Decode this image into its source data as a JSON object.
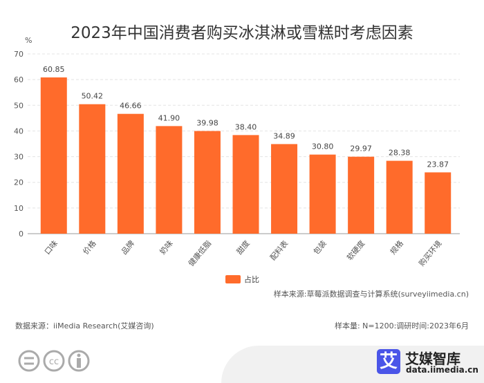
{
  "title": "2023年中国消费者购买冰淇淋或雪糕时考虑因素",
  "chart_data": {
    "type": "bar",
    "title": "2023年中国消费者购买冰淇淋或雪糕时考虑因素",
    "ylabel": "%",
    "ylim": [
      0,
      70
    ],
    "yticks": [
      0,
      10,
      20,
      30,
      40,
      50,
      60,
      70
    ],
    "grid": true,
    "legend_position": "bottom",
    "categories": [
      "口味",
      "价格",
      "品牌",
      "奶味",
      "健康低脂",
      "甜度",
      "配料表",
      "包装",
      "软硬度",
      "规格",
      "购买环境"
    ],
    "series": [
      {
        "name": "占比",
        "color": "#ff6b2b",
        "values": [
          60.85,
          50.42,
          46.66,
          41.9,
          39.98,
          38.4,
          34.89,
          30.8,
          29.97,
          28.38,
          23.87
        ]
      }
    ]
  },
  "footer": {
    "source": "数据来源：iiMedia Research(艾媒咨询)",
    "sample_source": "样本来源:草莓派数据调查与计算系统(surveyiimedia.cn)",
    "sample_size": "样本量: N=1200:调研时间:2023年6月",
    "brand": "艾媒智库",
    "brand_url": "data.iimedia.cn",
    "brand_glyph": "艾",
    "brand_color": "#4a55e8",
    "license_icons": [
      "no-derivatives-icon",
      "cc-icon",
      "attribution-icon"
    ]
  }
}
